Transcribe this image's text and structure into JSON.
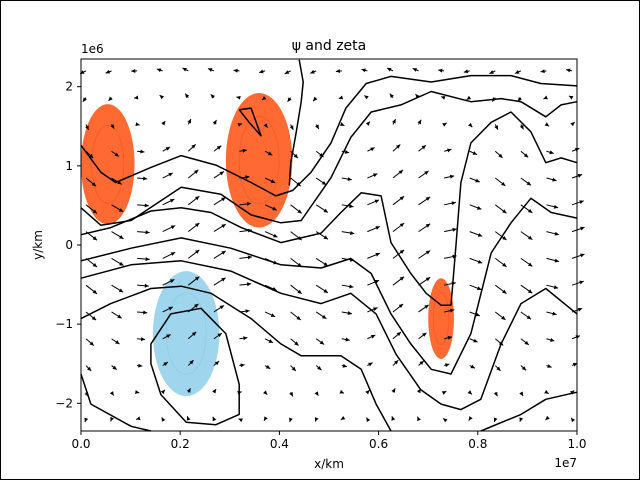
{
  "chart_data": {
    "type": "contour",
    "title": "ψ and zeta",
    "xlabel": "x/km",
    "ylabel": "y/km",
    "x_offset_label": "1e7",
    "y_offset_label": "1e6",
    "xlim": [
      0,
      1.0
    ],
    "ylim": [
      -2.35,
      2.35
    ],
    "xticks": [
      0.0,
      0.2,
      0.4,
      0.6,
      0.8,
      1.0
    ],
    "xtick_labels": [
      "0.0",
      "0.2",
      "0.4",
      "0.6",
      "0.8",
      "1.0"
    ],
    "yticks": [
      2,
      1,
      0,
      -1,
      -2
    ],
    "ytick_labels": [
      "2",
      "1",
      "0",
      "−1",
      "−2"
    ],
    "colors": {
      "positive_zeta": "#ff6a33",
      "negative_zeta": "#9fd6ee",
      "contour": "#000000",
      "quiver": "#000000"
    },
    "zeta_regions": [
      {
        "sign": "positive",
        "center": [
          0.054,
          1.02
        ],
        "half_extent": [
          0.054,
          0.76
        ]
      },
      {
        "sign": "positive",
        "center": [
          0.359,
          1.07
        ],
        "half_extent": [
          0.067,
          0.85
        ]
      },
      {
        "sign": "positive",
        "center": [
          0.726,
          -0.93
        ],
        "half_extent": [
          0.026,
          0.51
        ]
      },
      {
        "sign": "negative",
        "center": [
          0.212,
          -1.12
        ],
        "half_extent": [
          0.067,
          0.79
        ]
      }
    ],
    "psi_contours": [
      [
        [
          0,
          1.26
        ],
        [
          0.04,
          0.92
        ],
        [
          0.07,
          0.79
        ],
        [
          0.141,
          0.98
        ],
        [
          0.202,
          1.13
        ],
        [
          0.272,
          1.01
        ],
        [
          0.343,
          0.79
        ],
        [
          0.393,
          0.62
        ],
        [
          0.427,
          0.69
        ],
        [
          0.464,
          0.92
        ],
        [
          0.504,
          1.29
        ],
        [
          0.534,
          1.73
        ],
        [
          0.575,
          2.04
        ],
        [
          0.625,
          2.13
        ],
        [
          0.706,
          2.06
        ],
        [
          0.786,
          2.14
        ],
        [
          0.867,
          2.14
        ],
        [
          0.927,
          2.04
        ],
        [
          1.0,
          2.01
        ]
      ],
      [
        [
          0,
          0.47
        ],
        [
          0.04,
          0.25
        ],
        [
          0.101,
          0.31
        ],
        [
          0.202,
          0.73
        ],
        [
          0.282,
          0.64
        ],
        [
          0.343,
          0.38
        ],
        [
          0.403,
          0.28
        ],
        [
          0.444,
          0.31
        ],
        [
          0.504,
          0.85
        ],
        [
          0.544,
          1.36
        ],
        [
          0.585,
          1.68
        ],
        [
          0.645,
          1.77
        ],
        [
          0.706,
          1.94
        ],
        [
          0.786,
          1.81
        ],
        [
          0.847,
          1.85
        ],
        [
          0.887,
          1.81
        ],
        [
          0.937,
          1.62
        ],
        [
          0.968,
          1.77
        ],
        [
          1.0,
          1.81
        ]
      ],
      [
        [
          0,
          0.13
        ],
        [
          0.06,
          0.22
        ],
        [
          0.141,
          0.43
        ],
        [
          0.202,
          0.47
        ],
        [
          0.262,
          0.41
        ],
        [
          0.323,
          0.22
        ],
        [
          0.403,
          0.03
        ],
        [
          0.484,
          0.15
        ],
        [
          0.524,
          0.41
        ],
        [
          0.565,
          0.66
        ],
        [
          0.605,
          0.62
        ],
        [
          0.625,
          0.03
        ],
        [
          0.665,
          -0.36
        ],
        [
          0.696,
          -0.61
        ],
        [
          0.726,
          -0.76
        ],
        [
          0.746,
          -0.76
        ],
        [
          0.756,
          0
        ],
        [
          0.766,
          0.79
        ],
        [
          0.786,
          1.29
        ],
        [
          0.827,
          1.55
        ],
        [
          0.867,
          1.68
        ],
        [
          0.907,
          1.43
        ],
        [
          0.937,
          1.04
        ],
        [
          0.968,
          1.1
        ],
        [
          1.0,
          1.04
        ]
      ],
      [
        [
          0,
          -0.2
        ],
        [
          0.101,
          -0.04
        ],
        [
          0.202,
          0.09
        ],
        [
          0.302,
          -0.04
        ],
        [
          0.403,
          -0.25
        ],
        [
          0.484,
          -0.29
        ],
        [
          0.544,
          -0.17
        ],
        [
          0.585,
          -0.36
        ],
        [
          0.625,
          -0.87
        ],
        [
          0.665,
          -1.25
        ],
        [
          0.706,
          -1.57
        ],
        [
          0.746,
          -1.63
        ],
        [
          0.786,
          -1.12
        ],
        [
          0.827,
          -0.1
        ],
        [
          0.867,
          0.28
        ],
        [
          0.907,
          0.59
        ],
        [
          0.948,
          0.41
        ],
        [
          1.0,
          0.34
        ]
      ],
      [
        [
          0,
          -0.42
        ],
        [
          0.101,
          -0.25
        ],
        [
          0.202,
          -0.2
        ],
        [
          0.302,
          -0.33
        ],
        [
          0.403,
          -0.61
        ],
        [
          0.484,
          -0.74
        ],
        [
          0.544,
          -0.61
        ],
        [
          0.595,
          -0.87
        ],
        [
          0.635,
          -1.38
        ],
        [
          0.685,
          -1.83
        ],
        [
          0.726,
          -2.01
        ],
        [
          0.766,
          -2.08
        ],
        [
          0.806,
          -1.95
        ],
        [
          0.847,
          -1.25
        ],
        [
          0.887,
          -0.74
        ],
        [
          0.937,
          -0.55
        ],
        [
          1.0,
          -0.87
        ]
      ],
      [
        [
          0,
          -0.93
        ],
        [
          0.06,
          -0.74
        ],
        [
          0.141,
          -0.55
        ],
        [
          0.202,
          -0.52
        ],
        [
          0.262,
          -0.61
        ],
        [
          0.343,
          -0.93
        ],
        [
          0.403,
          -1.25
        ],
        [
          0.444,
          -1.4
        ],
        [
          0.524,
          -1.4
        ],
        [
          0.565,
          -1.57
        ],
        [
          0.595,
          -2.01
        ],
        [
          0.625,
          -2.39
        ]
      ],
      [
        [
          0.141,
          -1.25
        ],
        [
          0.181,
          -0.87
        ],
        [
          0.242,
          -0.8
        ],
        [
          0.292,
          -1.12
        ],
        [
          0.319,
          -1.76
        ],
        [
          0.319,
          -2.14
        ],
        [
          0.272,
          -2.27
        ],
        [
          0.212,
          -2.24
        ],
        [
          0.161,
          -1.89
        ],
        [
          0.141,
          -1.5
        ],
        [
          0.141,
          -1.25
        ]
      ],
      [
        [
          0,
          -1.63
        ],
        [
          0.02,
          -2.01
        ],
        [
          0.101,
          -2.29
        ],
        [
          0.141,
          -2.39
        ]
      ],
      [
        [
          0.806,
          -2.39
        ],
        [
          0.887,
          -2.14
        ],
        [
          0.937,
          -1.95
        ],
        [
          1.0,
          -1.86
        ]
      ],
      [
        [
          0.44,
          2.34
        ],
        [
          0.448,
          2.06
        ],
        [
          0.444,
          1.81
        ],
        [
          0.434,
          1.43
        ],
        [
          0.423,
          1.04
        ],
        [
          0.42,
          0.75
        ]
      ],
      [
        [
          0.319,
          1.71
        ],
        [
          0.343,
          1.73
        ],
        [
          0.363,
          1.38
        ],
        [
          0.339,
          1.55
        ],
        [
          0.319,
          1.71
        ]
      ]
    ],
    "quiver": {
      "nx": 20,
      "ny": 14,
      "x_range": [
        0.01,
        0.99
      ],
      "y_range": [
        -2.2,
        2.2
      ]
    },
    "grid": false
  }
}
